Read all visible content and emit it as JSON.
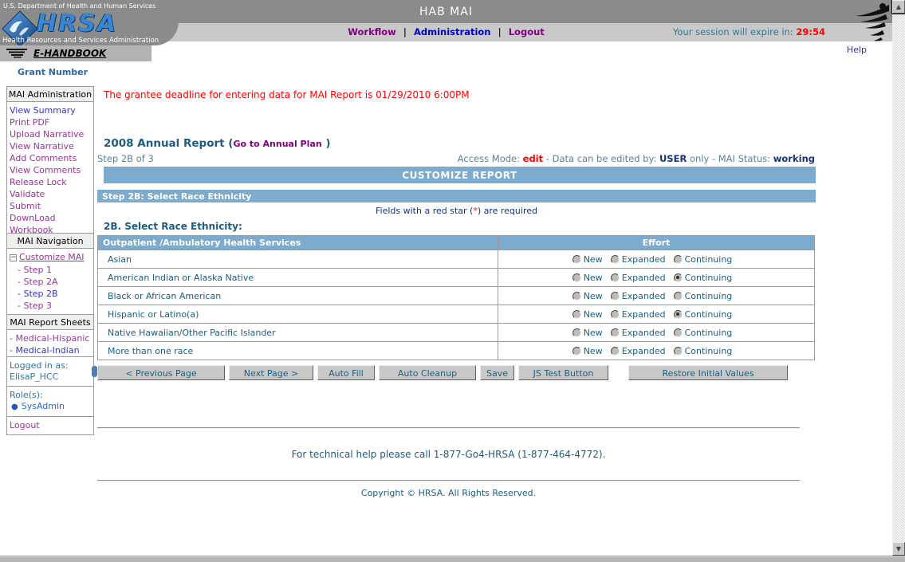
{
  "header": {
    "dept_text": "U.S. Department of Health and Human Services",
    "hrsa_acronym": "HRSA",
    "hrsa_subtext": "Health Resources and Services Administration",
    "ehandbook_label": "E-HANDBOOK",
    "app_title": "HAB MAI",
    "nav": {
      "workflow": "Workflow",
      "administration": "Administration",
      "logout": "Logout",
      "separator": "|"
    },
    "session_label": "Your session will expire in:",
    "session_time": "29:54",
    "help_label": "Help"
  },
  "sidebar": {
    "grant_number_label": "Grant Number",
    "admin_box": {
      "title": "MAI Administration",
      "items": [
        {
          "label": "View Summary",
          "variant": "blue"
        },
        {
          "label": "Print PDF",
          "variant": "purple"
        },
        {
          "label": "Upload Narrative",
          "variant": "purple"
        },
        {
          "label": "View Narrative",
          "variant": "purple"
        },
        {
          "label": "Add Comments",
          "variant": "purple"
        },
        {
          "label": "View Comments",
          "variant": "purple"
        },
        {
          "label": "Release Lock",
          "variant": "purple"
        },
        {
          "label": "Validate",
          "variant": "purple"
        },
        {
          "label": "Submit",
          "variant": "purple"
        },
        {
          "label": "DownLoad",
          "variant": "purple"
        },
        {
          "label": "Workbook",
          "variant": "purple"
        }
      ]
    },
    "nav_box": {
      "title": "MAI Navigation",
      "collapse_glyph": "−",
      "root_label": "Customize MAI",
      "steps": [
        {
          "label": "- Step 1",
          "variant": "purple"
        },
        {
          "label": "- Step 2A",
          "variant": "purple"
        },
        {
          "label": "- Step 2B",
          "variant": "blue"
        },
        {
          "label": "- Step 3",
          "variant": "purple"
        }
      ]
    },
    "report_box": {
      "title": "MAI Report Sheets",
      "items": [
        {
          "label": "- Medical-Hispanic",
          "variant": "purple"
        },
        {
          "label": "- Medical-Indian",
          "variant": "blue"
        }
      ]
    },
    "user_box": {
      "logged_in_label": "Logged in as:",
      "username": "ElisaP_HCC",
      "roles_label": "Role(s):",
      "role_bullet": "●",
      "role": "SysAdmin",
      "logout_label": "Logout"
    }
  },
  "main": {
    "deadline_notice": "The grantee deadline for entering data for MAI Report is 01/29/2010 6:00PM",
    "report_title": "2008 Annual Report",
    "paren_open": " (",
    "annual_plan_link": "Go to Annual Plan",
    "paren_close": " )",
    "step_indicator": "Step 2B of 3",
    "access_mode_label": "Access Mode:",
    "access_mode_value": "edit",
    "edited_by_label": "- Data can be edited by:",
    "edited_by_value": "USER",
    "status_label": "only - MAI Status:",
    "status_value": "working",
    "customize_bar": "CUSTOMIZE REPORT",
    "step_bar": "Step 2B: Select Race Ethnicity",
    "required_note_pre": "Fields with a red star (",
    "required_star": "*",
    "required_note_post": ") are required",
    "section_heading": "2B. Select Race Ethnicity:",
    "table": {
      "col1_header": "Outpatient /Ambulatory Health Services",
      "col2_header": "Effort",
      "radio_options": [
        "New",
        "Expanded",
        "Continuing"
      ],
      "rows": [
        {
          "label": "Asian",
          "selected": null
        },
        {
          "label": "American Indian or Alaska Native",
          "selected": "Continuing"
        },
        {
          "label": "Black or African American",
          "selected": null
        },
        {
          "label": "Hispanic or Latino(a)",
          "selected": "Continuing"
        },
        {
          "label": "Native Hawaiian/Other Pacific Islander",
          "selected": null
        },
        {
          "label": "More than one race",
          "selected": null
        }
      ]
    },
    "buttons": [
      "< Previous Page",
      "Next Page >",
      "Auto Fill",
      "Auto Cleanup",
      "Save",
      "JS Test Button",
      "Restore Initial Values"
    ],
    "footer_help": "For technical help please call 1-877-Go4-HRSA (1-877-464-4772).",
    "copyright": "Copyright © HRSA. All Rights Reserved."
  },
  "scrollbar": {
    "up_glyph": "▲",
    "down_glyph": "▼"
  },
  "colors": {
    "bar_blue": "#7dabcd",
    "dark_teal_text": "#1b5e82",
    "status_gray_blue": "#5f7f93",
    "navy_value": "#16337e",
    "alert_red": "#ff0000",
    "link_purple": "#993399",
    "link_blue": "#3333cc",
    "header_dark_gray": "#8b8b8b",
    "header_light_gray": "#c9c9c9"
  }
}
